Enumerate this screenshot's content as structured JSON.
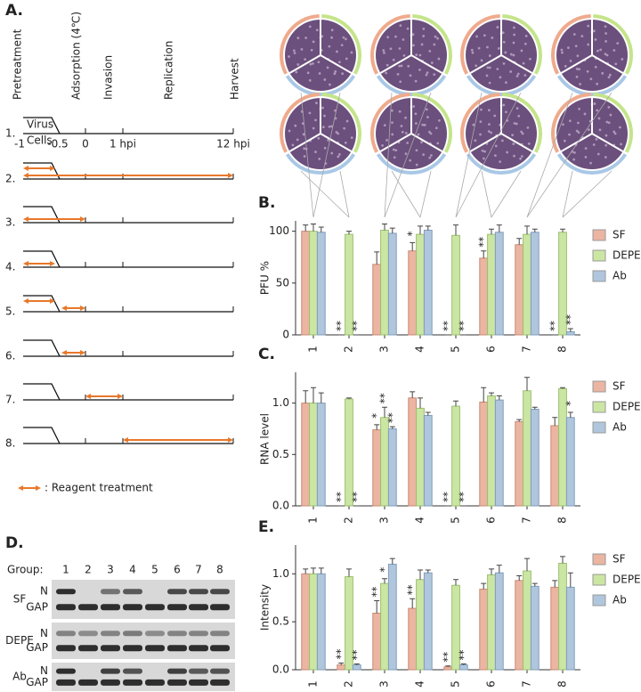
{
  "schematic": {
    "label": "A.",
    "phases": [
      "Pretreatment",
      "Adsorption (4℃)",
      "Invasion",
      "Replication",
      "Harvest"
    ],
    "rows": [
      "1.",
      "2.",
      "3.",
      "4.",
      "5.",
      "6.",
      "7.",
      "8."
    ],
    "virus": "Virus",
    "cells": "Cells",
    "time_labels": [
      "-1",
      "-0.5",
      "0",
      "1 hpi",
      "12 hpi"
    ],
    "legend": ": Reagent treatment"
  },
  "blot": {
    "label": "D.",
    "group_label": "Group:",
    "groups": [
      "1",
      "2",
      "3",
      "4",
      "5",
      "6",
      "7",
      "8"
    ],
    "rows": [
      {
        "name": "SF",
        "bands": [
          "N",
          "GAP"
        ]
      },
      {
        "name": "DEPE",
        "bands": [
          "N",
          "GAP"
        ]
      },
      {
        "name": "Ab",
        "bands": [
          "N",
          "GAP"
        ]
      }
    ]
  },
  "chart_data": [
    {
      "type": "bar",
      "label": "B.",
      "y_label": "PFU %",
      "categories": [
        "1",
        "2",
        "3",
        "4",
        "5",
        "6",
        "7",
        "8"
      ],
      "ylim": [
        0,
        110
      ],
      "yticks": [
        0,
        50,
        100
      ],
      "legend": "right",
      "series": [
        {
          "name": "SF",
          "color": "#ebb5a2",
          "values": [
            100,
            0,
            68,
            81,
            0,
            74,
            87,
            0
          ],
          "errors": [
            6,
            0,
            12,
            8,
            0,
            7,
            6,
            0
          ],
          "annotations": [
            null,
            "**",
            null,
            "*",
            "**",
            "**",
            null,
            "**"
          ]
        },
        {
          "name": "DEPE",
          "color": "#cbe6a3",
          "values": [
            100,
            97,
            101,
            97,
            96,
            97,
            97,
            99
          ],
          "errors": [
            7,
            3,
            6,
            8,
            10,
            5,
            8,
            3
          ],
          "annotations": [
            null,
            null,
            null,
            null,
            null,
            null,
            null,
            null
          ]
        },
        {
          "name": "Ab",
          "color": "#b0c6dd",
          "values": [
            99,
            0,
            98,
            101,
            0,
            99,
            99,
            3
          ],
          "errors": [
            5,
            0,
            5,
            4,
            0,
            7,
            3,
            3
          ],
          "annotations": [
            null,
            "**",
            null,
            null,
            "**",
            null,
            null,
            "**"
          ]
        }
      ]
    },
    {
      "type": "bar",
      "label": "C.",
      "y_label": "RNA level",
      "categories": [
        "1",
        "2",
        "3",
        "4",
        "5",
        "6",
        "7",
        "8"
      ],
      "ylim": [
        0,
        1.3
      ],
      "yticks": [
        {
          "value": 0,
          "label": "0.0"
        },
        0.5,
        {
          "value": 1,
          "label": "1.0"
        }
      ],
      "legend": "right",
      "series": [
        {
          "name": "SF",
          "color": "#ebb5a2",
          "values": [
            1.0,
            0,
            0.74,
            1.05,
            0,
            1.01,
            0.82,
            0.78
          ],
          "errors": [
            0.12,
            0,
            0.05,
            0.06,
            0,
            0.14,
            0.02,
            0.08
          ],
          "annotations": [
            null,
            "**",
            "*",
            null,
            "**",
            null,
            null,
            null
          ]
        },
        {
          "name": "DEPE",
          "color": "#cbe6a3",
          "values": [
            1.0,
            1.04,
            0.86,
            0.95,
            0.97,
            1.07,
            1.12,
            1.14
          ],
          "errors": [
            0.15,
            0.01,
            0.1,
            0.1,
            0.05,
            0.03,
            0.13,
            0.01
          ],
          "annotations": [
            null,
            null,
            "**",
            null,
            null,
            null,
            null,
            null
          ]
        },
        {
          "name": "Ab",
          "color": "#b0c6dd",
          "values": [
            1.0,
            0,
            0.75,
            0.88,
            0,
            1.03,
            0.94,
            0.86
          ],
          "errors": [
            0.1,
            0,
            0.02,
            0.03,
            0,
            0.04,
            0.02,
            0.05
          ],
          "annotations": [
            null,
            "**",
            "**",
            null,
            "**",
            null,
            null,
            "*"
          ]
        }
      ]
    },
    {
      "type": "bar",
      "label": "E.",
      "y_label": "Intensity",
      "categories": [
        "1",
        "2",
        "3",
        "4",
        "5",
        "6",
        "7",
        "8"
      ],
      "ylim": [
        0,
        1.3
      ],
      "yticks": [
        {
          "value": 0,
          "label": "0.0"
        },
        0.5,
        {
          "value": 1,
          "label": "1.0"
        }
      ],
      "legend": "right",
      "series": [
        {
          "name": "SF",
          "color": "#ebb5a2",
          "values": [
            1.0,
            0.05,
            0.59,
            0.64,
            0.03,
            0.84,
            0.93,
            0.86
          ],
          "errors": [
            0.05,
            0.02,
            0.13,
            0.1,
            0.01,
            0.06,
            0.05,
            0.07
          ],
          "annotations": [
            null,
            "**",
            "**",
            "**",
            "**",
            null,
            null,
            null
          ]
        },
        {
          "name": "DEPE",
          "color": "#cbe6a3",
          "values": [
            1.0,
            0.97,
            0.9,
            0.94,
            0.88,
            0.99,
            1.03,
            1.11
          ],
          "errors": [
            0.06,
            0.08,
            0.05,
            0.1,
            0.06,
            0.06,
            0.13,
            0.07
          ],
          "annotations": [
            null,
            null,
            "*",
            null,
            null,
            null,
            null,
            null
          ]
        },
        {
          "name": "Ab",
          "color": "#b0c6dd",
          "values": [
            1.0,
            0.05,
            1.1,
            1.01,
            0.05,
            1.01,
            0.87,
            0.86
          ],
          "errors": [
            0.06,
            0.01,
            0.06,
            0.03,
            0.01,
            0.08,
            0.03,
            0.15
          ],
          "annotations": [
            null,
            "**",
            null,
            null,
            "**",
            null,
            null,
            null
          ]
        }
      ]
    }
  ]
}
